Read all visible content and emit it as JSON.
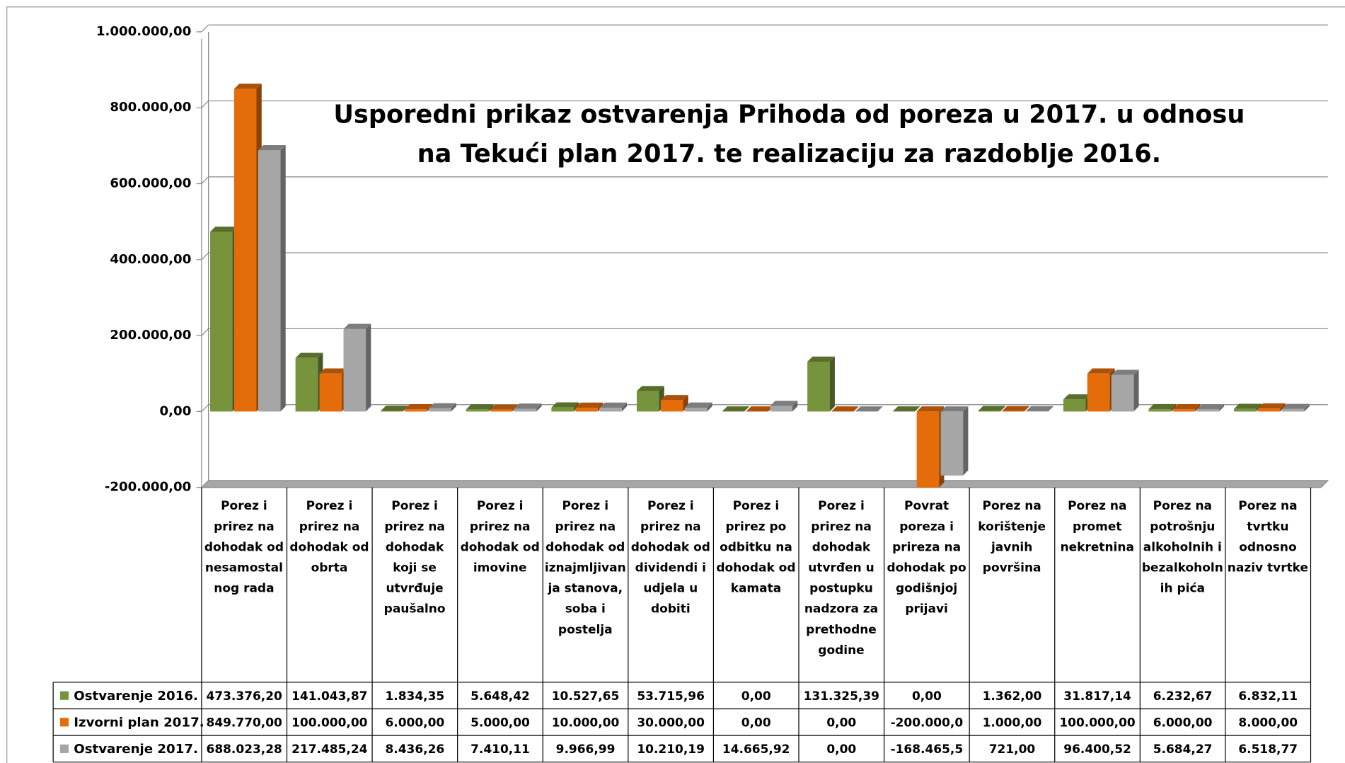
{
  "chart_data": {
    "type": "bar",
    "title": "Usporedni prikaz ostvarenja Prihoda od poreza u 2017. u odnosu na Tekući plan 2017. te realizaciju za razdoblje 2016.",
    "categories": [
      "Porez i prirez na dohodak od nesamostalnog rada",
      "Porez i prirez na dohodak od obrta",
      "Porez i prirez na dohodak koji se utvrđuje paušalno",
      "Porez i prirez na dohodak od imovine",
      "Porez i prirez na dohodak od iznajmljivanja stanova, soba i postelja",
      "Porez i prirez na dohodak od dividendi i udjela u dobiti",
      "Porez i prirez po odbitku na dohodak od kamata",
      "Porez i prirez na dohodak utvrđen u postupku nadzora za prethodne godine",
      "Povrat poreza i prireza na dohodak po godišnjoj prijavi",
      "Porez na korištenje javnih površina",
      "Porez na promet nekretnina",
      "Porez na potrošnju alkoholnih i bezalkoholnih pića",
      "Porez na tvrtku odnosno naziv tvrtke"
    ],
    "series": [
      {
        "name": "Ostvarenje 2016.",
        "color": "#77933c",
        "values": [
          473376.2,
          141043.87,
          1834.35,
          5648.42,
          10527.65,
          53715.96,
          0,
          131325.39,
          0,
          1362,
          31817.14,
          6232.67,
          6832.11
        ],
        "value_labels": [
          "473.376,20",
          "141.043,87",
          "1.834,35",
          "5.648,42",
          "10.527,65",
          "53.715,96",
          "0,00",
          "131.325,39",
          "0,00",
          "1.362,00",
          "31.817,14",
          "6.232,67",
          "6.832,11"
        ]
      },
      {
        "name": "Izvorni plan 2017.",
        "color": "#e46c0a",
        "values": [
          849770,
          100000,
          6000,
          5000,
          10000,
          30000,
          0,
          0,
          -200000,
          1000,
          100000,
          6000,
          8000
        ],
        "value_labels": [
          "849.770,00",
          "100.000,00",
          "6.000,00",
          "5.000,00",
          "10.000,00",
          "30.000,00",
          "0,00",
          "0,00",
          "-200.000,0",
          "1.000,00",
          "100.000,00",
          "6.000,00",
          "8.000,00"
        ]
      },
      {
        "name": "Ostvarenje 2017.",
        "color": "#a6a6a6",
        "values": [
          688023.28,
          217485.24,
          8436.26,
          7410.11,
          9966.99,
          10210.19,
          14665.92,
          0,
          -168465.5,
          721,
          96400.52,
          5684.27,
          6518.77
        ],
        "value_labels": [
          "688.023,28",
          "217.485,24",
          "8.436,26",
          "7.410,11",
          "9.966,99",
          "10.210,19",
          "14.665,92",
          "0,00",
          "-168.465,5",
          "721,00",
          "96.400,52",
          "5.684,27",
          "6.518,77"
        ]
      }
    ],
    "ylim": [
      -200000,
      1000000
    ],
    "yticks": [
      {
        "value": -200000,
        "label": "-200.000,00"
      },
      {
        "value": 0,
        "label": "0,00"
      },
      {
        "value": 200000,
        "label": "200.000,00"
      },
      {
        "value": 400000,
        "label": "400.000,00"
      },
      {
        "value": 600000,
        "label": "600.000,00"
      },
      {
        "value": 800000,
        "label": "800.000,00"
      },
      {
        "value": 1000000,
        "label": "1.000.000,00"
      }
    ],
    "grid": true
  }
}
